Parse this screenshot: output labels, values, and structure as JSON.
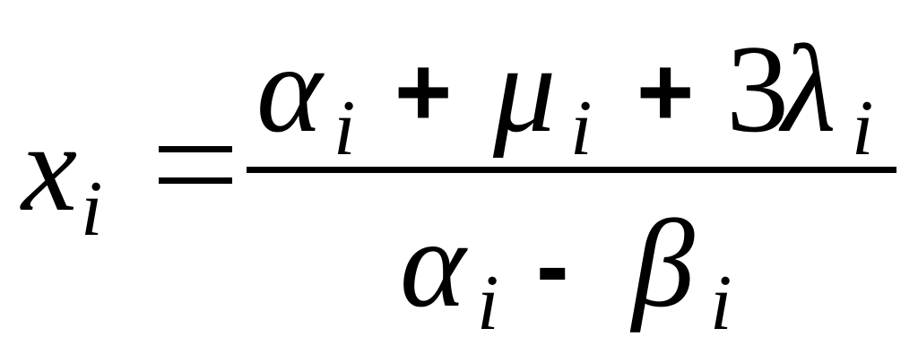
{
  "formula": {
    "lhs": {
      "base": "x",
      "sub": "i"
    },
    "equals": "=",
    "numerator": [
      {
        "base": "α",
        "sub": "i"
      },
      {
        "op": "+"
      },
      {
        "base": "μ",
        "sub": "i"
      },
      {
        "op": "+"
      },
      {
        "coef": "3",
        "base": "λ",
        "sub": "i"
      }
    ],
    "denominator": [
      {
        "base": "α",
        "sub": "i"
      },
      {
        "op": "-"
      },
      {
        "base": "β",
        "sub": "i"
      }
    ]
  }
}
